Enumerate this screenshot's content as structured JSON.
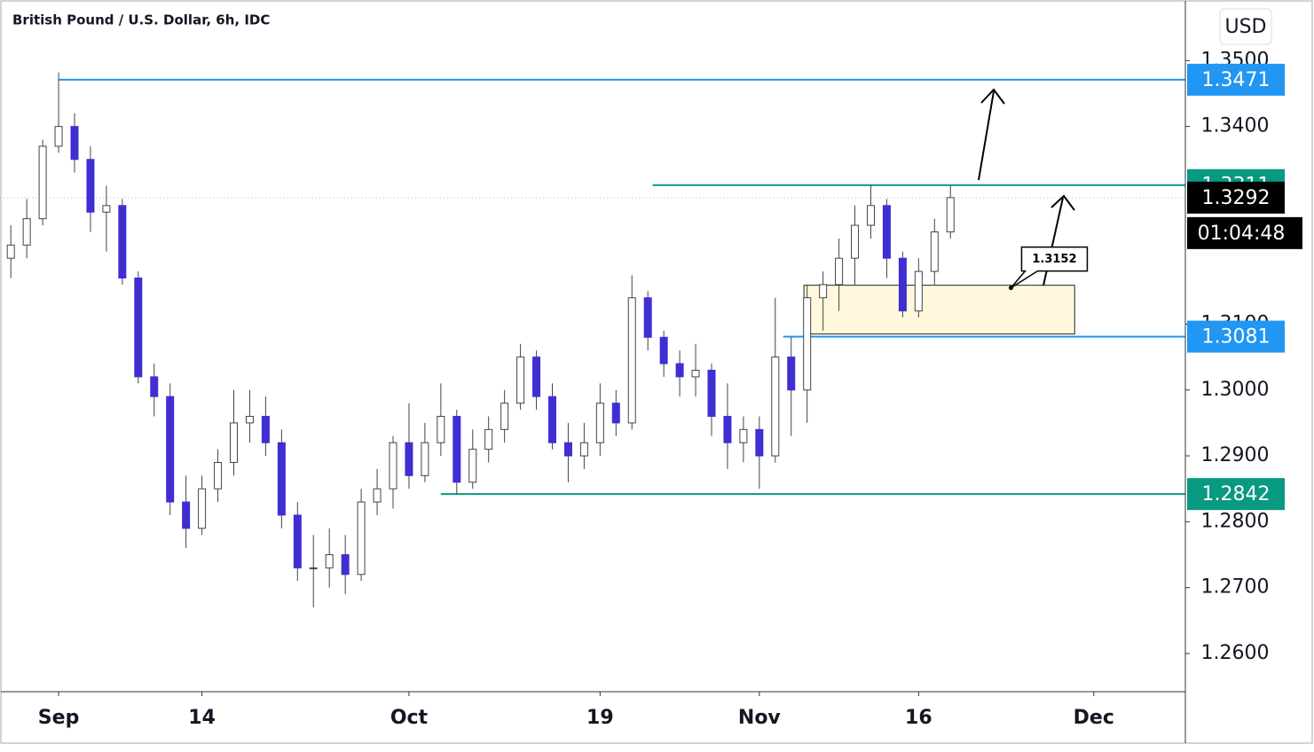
{
  "chart_data": {
    "type": "candlestick",
    "title": "British Pound / U.S. Dollar, 6h, IDC",
    "currency": "USD",
    "x": [
      -3,
      -2,
      -1,
      0,
      1,
      2,
      3,
      4,
      5,
      6,
      7,
      8,
      9,
      10,
      11,
      12,
      13,
      14,
      15,
      16,
      17,
      18,
      19,
      20,
      21,
      22,
      23,
      24,
      25,
      26,
      27,
      28,
      29,
      30,
      31,
      32,
      33,
      34,
      35,
      36,
      37,
      38,
      39,
      40,
      41,
      42,
      43,
      44,
      45,
      46,
      47,
      48,
      49,
      50,
      51,
      52,
      53,
      54,
      55,
      56
    ],
    "open": [
      1.32,
      1.322,
      1.326,
      1.337,
      1.34,
      1.335,
      1.327,
      1.328,
      1.317,
      1.302,
      1.299,
      1.283,
      1.279,
      1.285,
      1.289,
      1.295,
      1.296,
      1.292,
      1.281,
      1.273,
      1.273,
      1.275,
      1.272,
      1.283,
      1.285,
      1.292,
      1.287,
      1.292,
      1.296,
      1.286,
      1.291,
      1.294,
      1.298,
      1.305,
      1.299,
      1.292,
      1.29,
      1.292,
      1.298,
      1.295,
      1.314,
      1.308,
      1.304,
      1.302,
      1.303,
      1.296,
      1.292,
      1.294,
      1.29,
      1.305,
      1.3,
      1.314,
      1.316,
      1.32,
      1.325,
      1.328,
      1.32,
      1.312,
      1.318,
      1.324
    ],
    "high": [
      1.325,
      1.329,
      1.338,
      1.3482,
      1.342,
      1.337,
      1.331,
      1.329,
      1.318,
      1.304,
      1.301,
      1.287,
      1.287,
      1.291,
      1.3,
      1.3,
      1.299,
      1.294,
      1.283,
      1.278,
      1.279,
      1.278,
      1.285,
      1.288,
      1.293,
      1.298,
      1.295,
      1.301,
      1.297,
      1.294,
      1.296,
      1.3,
      1.307,
      1.306,
      1.301,
      1.295,
      1.295,
      1.301,
      1.3,
      1.3174,
      1.315,
      1.309,
      1.306,
      1.307,
      1.304,
      1.301,
      1.296,
      1.296,
      1.314,
      1.308,
      1.316,
      1.318,
      1.323,
      1.328,
      1.3311,
      1.329,
      1.321,
      1.32,
      1.326,
      1.331
    ],
    "low": [
      1.317,
      1.32,
      1.325,
      1.336,
      1.333,
      1.324,
      1.321,
      1.316,
      1.301,
      1.296,
      1.281,
      1.276,
      1.278,
      1.283,
      1.287,
      1.292,
      1.29,
      1.279,
      1.271,
      1.267,
      1.27,
      1.269,
      1.271,
      1.281,
      1.282,
      1.285,
      1.286,
      1.29,
      1.2842,
      1.285,
      1.289,
      1.292,
      1.297,
      1.297,
      1.291,
      1.286,
      1.288,
      1.29,
      1.293,
      1.294,
      1.306,
      1.302,
      1.299,
      1.299,
      1.293,
      1.288,
      1.289,
      1.285,
      1.289,
      1.293,
      1.295,
      1.309,
      1.312,
      1.316,
      1.323,
      1.317,
      1.311,
      1.311,
      1.316,
      1.323
    ],
    "close": [
      1.322,
      1.326,
      1.337,
      1.34,
      1.335,
      1.327,
      1.328,
      1.317,
      1.302,
      1.299,
      1.283,
      1.279,
      1.285,
      1.289,
      1.295,
      1.296,
      1.292,
      1.281,
      1.273,
      1.273,
      1.275,
      1.272,
      1.283,
      1.285,
      1.292,
      1.287,
      1.292,
      1.296,
      1.286,
      1.291,
      1.294,
      1.298,
      1.305,
      1.299,
      1.292,
      1.29,
      1.292,
      1.298,
      1.295,
      1.314,
      1.308,
      1.304,
      1.302,
      1.303,
      1.296,
      1.292,
      1.294,
      1.29,
      1.305,
      1.3,
      1.314,
      1.316,
      1.32,
      1.325,
      1.328,
      1.32,
      1.312,
      1.318,
      1.324,
      1.3292
    ],
    "up_color": "#ffffff",
    "down_color": "#3f2fd0",
    "wick_color": "#444444",
    "xlim": [
      -3.68,
      70.75
    ],
    "xticks": [
      {
        "value": 0,
        "label": "Sep"
      },
      {
        "value": 9,
        "label": "14"
      },
      {
        "value": 22,
        "label": "Oct"
      },
      {
        "value": 34,
        "label": "19"
      },
      {
        "value": 44,
        "label": "Nov"
      },
      {
        "value": 54,
        "label": "16"
      },
      {
        "value": 65,
        "label": "Dec"
      }
    ],
    "ylim": [
      1.2542,
      1.3592
    ],
    "yticks": [
      {
        "value": 1.26,
        "label": "1.2600"
      },
      {
        "value": 1.27,
        "label": "1.2700"
      },
      {
        "value": 1.28,
        "label": "1.2800"
      },
      {
        "value": 1.29,
        "label": "1.2900"
      },
      {
        "value": 1.3,
        "label": "1.3000"
      },
      {
        "value": 1.31,
        "label": "1.3100"
      },
      {
        "value": 1.34,
        "label": "1.3400"
      },
      {
        "value": 1.35,
        "label": "1.3500"
      }
    ],
    "levels": [
      {
        "value": 1.3471,
        "color": "#2196f3",
        "start": 0
      },
      {
        "value": 1.3311,
        "color": "#089981",
        "start": 37.3
      },
      {
        "value": 1.3081,
        "color": "#2196f3",
        "start": 45.5
      },
      {
        "value": 1.2842,
        "color": "#089981",
        "start": 24.0
      }
    ],
    "zone": {
      "low": 1.3085,
      "high": 1.3159,
      "x0": 46.8,
      "x1": 63.8,
      "color": "#fff8dc"
    },
    "callout": {
      "x": 59.8,
      "y": 1.3155,
      "label": 1.3152
    },
    "last_price": 1.3292,
    "countdown": "01:04:48"
  }
}
